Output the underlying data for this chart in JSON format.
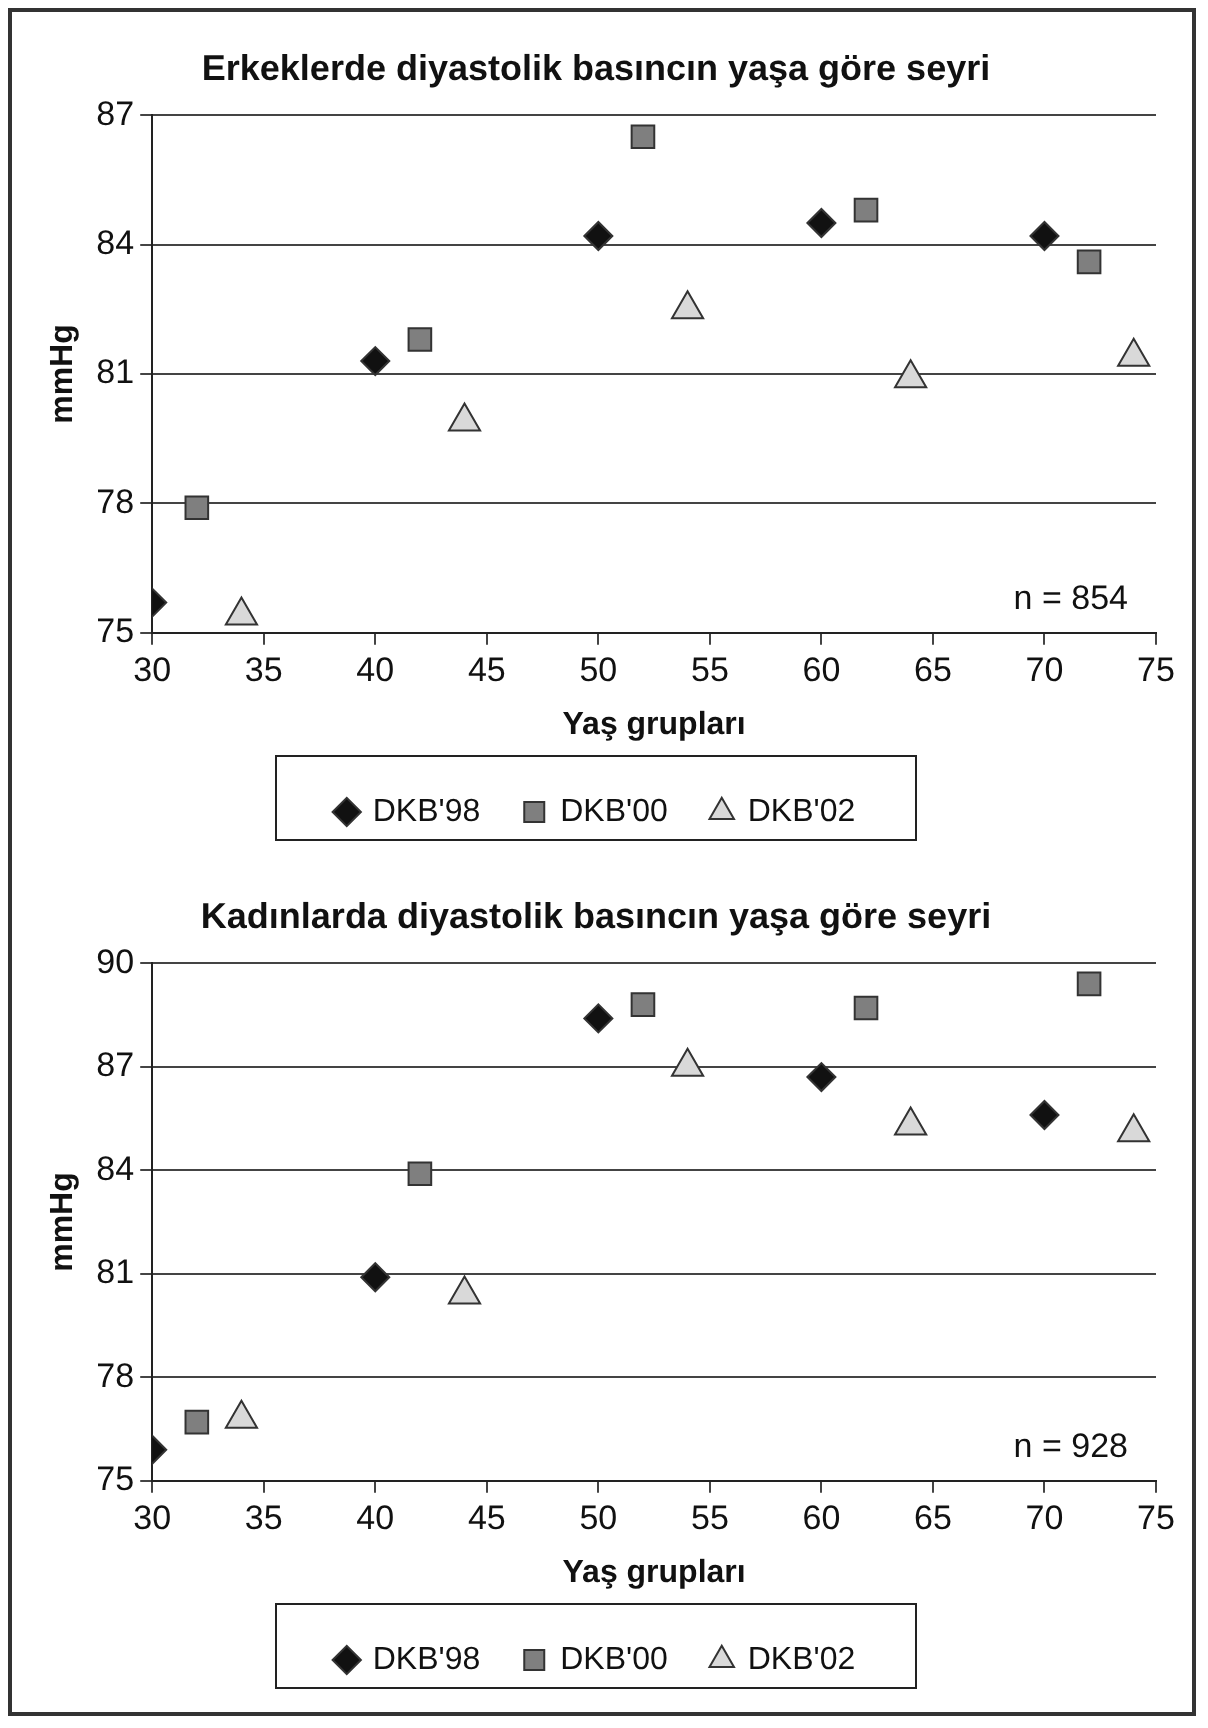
{
  "chart_data": [
    {
      "type": "scatter",
      "title": "Erkeklerde diyastolik basıncın yaşa göre seyri",
      "xlabel": "Yaş grupları",
      "ylabel": "mmHg",
      "xlim": [
        30,
        75
      ],
      "xticks": [
        30,
        35,
        40,
        45,
        50,
        55,
        60,
        65,
        70,
        75
      ],
      "ylim": [
        75,
        87
      ],
      "yticks": [
        75,
        78,
        81,
        84,
        87
      ],
      "grid": "y",
      "legend": "bottom",
      "annotations": [
        "n = 854"
      ],
      "series": [
        {
          "name": "DKB'98",
          "color": "#111111",
          "marker": "diamond",
          "x": [
            30,
            40,
            50,
            60,
            70
          ],
          "values": [
            75.7,
            81.3,
            84.2,
            84.5,
            84.2
          ]
        },
        {
          "name": "DKB'00",
          "color": "#7f7f7f",
          "marker": "square",
          "x": [
            32,
            42,
            52,
            62,
            72
          ],
          "values": [
            77.9,
            81.8,
            86.5,
            84.8,
            83.6
          ]
        },
        {
          "name": "DKB'02",
          "color": "#d9d9d9",
          "marker": "triangle",
          "x": [
            34,
            44,
            54,
            64,
            74
          ],
          "values": [
            75.4,
            79.9,
            82.5,
            80.9,
            81.4
          ]
        }
      ]
    },
    {
      "type": "scatter",
      "title": "Kadınlarda diyastolik basıncın yaşa göre seyri",
      "xlabel": "Yaş grupları",
      "ylabel": "mmHg",
      "xlim": [
        30,
        75
      ],
      "xticks": [
        30,
        35,
        40,
        45,
        50,
        55,
        60,
        65,
        70,
        75
      ],
      "ylim": [
        75,
        90
      ],
      "yticks": [
        75,
        78,
        81,
        84,
        87,
        90
      ],
      "grid": "y",
      "legend": "bottom",
      "annotations": [
        "n = 928"
      ],
      "series": [
        {
          "name": "DKB'98",
          "color": "#111111",
          "marker": "diamond",
          "x": [
            30,
            40,
            50,
            60,
            70
          ],
          "values": [
            75.9,
            80.9,
            88.4,
            86.7,
            85.6
          ]
        },
        {
          "name": "DKB'00",
          "color": "#7f7f7f",
          "marker": "square",
          "x": [
            32,
            42,
            52,
            62,
            72
          ],
          "values": [
            76.7,
            83.9,
            88.8,
            88.7,
            89.4
          ]
        },
        {
          "name": "DKB'02",
          "color": "#d9d9d9",
          "marker": "triangle",
          "x": [
            34,
            44,
            54,
            64,
            74
          ],
          "values": [
            76.8,
            80.4,
            87.0,
            85.3,
            85.1
          ]
        }
      ]
    }
  ]
}
